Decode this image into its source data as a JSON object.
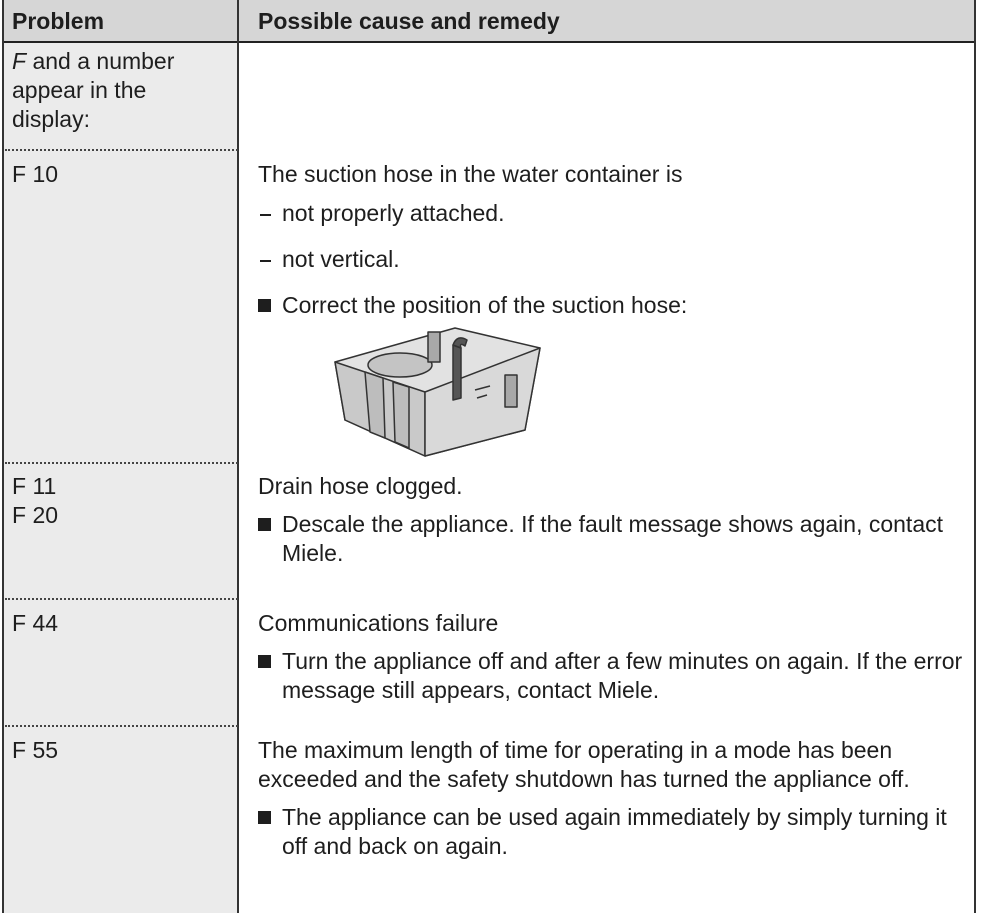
{
  "table": {
    "header": [
      "Problem",
      "Possible cause and remedy"
    ],
    "rows": [
      {
        "problem_code": "F",
        "problem_text": "and a number appear in the display:"
      },
      {
        "problem": [
          "F 10"
        ],
        "cause": "The suction hose in the water container is",
        "items": [
          "not properly attached.",
          "not vertical."
        ],
        "remedy": "Correct the position of the suction hose:"
      },
      {
        "problem": [
          "F 11",
          "F 20"
        ],
        "cause": "Drain hose clogged.",
        "remedy": "Descale the appliance. If the fault message shows again, contact Miele."
      },
      {
        "problem": [
          "F 44"
        ],
        "cause": "Communications failure",
        "remedy": "Turn the appliance off and after a few minutes on again. If the error message still appears, contact Miele."
      },
      {
        "problem": [
          "F 55"
        ],
        "cause": "The maximum length of time for operating in a mode has been exceeded and the safety shutdown has turned the appliance off.",
        "remedy": "The appliance can be used again immediately by simply turning it off and back on again."
      }
    ]
  }
}
